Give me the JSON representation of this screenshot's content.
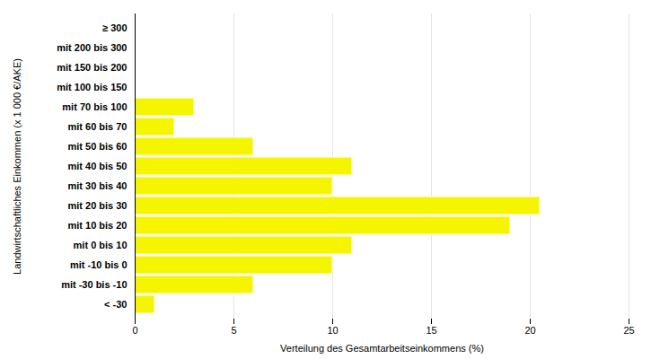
{
  "chart_data": {
    "type": "bar",
    "orientation": "horizontal",
    "categories": [
      "≥ 300",
      "mit 200 bis 300",
      "mit 150 bis 200",
      "mit 100 bis 150",
      "mit 70 bis 100",
      "mit 60 bis 70",
      "mit 50 bis 60",
      "mit 40 bis 50",
      "mit 30 bis 40",
      "mit 20 bis 30",
      "mit 10 bis 20",
      "mit 0 bis 10",
      "mit -10 bis 0",
      "mit -30 bis -10",
      "< -30"
    ],
    "values": [
      0,
      0,
      0,
      0,
      3,
      2,
      6,
      11,
      10,
      20.5,
      19,
      11,
      10,
      6,
      1
    ],
    "color": "#f5f500",
    "xlabel": "Verteilung des Gesamtarbeitseinkommens (%)",
    "ylabel": "Landwirtschaftliches Einkommen (x 1 000 €/AKE)",
    "xlim": [
      0,
      25
    ],
    "xticks": [
      0,
      5,
      10,
      15,
      20,
      25
    ],
    "grid": true
  }
}
